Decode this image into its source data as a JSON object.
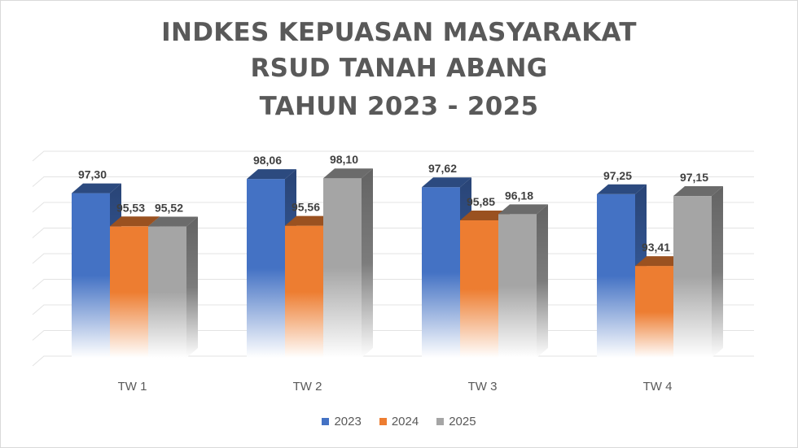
{
  "chart_data": {
    "type": "bar",
    "title": [
      "INDKES KEPUASAN MASYARAKAT",
      "RSUD TANAH ABANG",
      "TAHUN 2023 - 2025"
    ],
    "categories": [
      "TW 1",
      "TW 2",
      "TW 3",
      "TW 4"
    ],
    "series": [
      {
        "name": "2023",
        "color": "#4472c4",
        "values": [
          97.3,
          98.06,
          97.62,
          97.25
        ],
        "labels": [
          "97,30",
          "98,06",
          "97,62",
          "97,25"
        ]
      },
      {
        "name": "2024",
        "color": "#ed7d31",
        "values": [
          95.53,
          95.56,
          95.85,
          93.41
        ],
        "labels": [
          "95,53",
          "95,56",
          "95,85",
          "93,41"
        ]
      },
      {
        "name": "2025",
        "color": "#a5a5a5",
        "values": [
          95.52,
          98.1,
          96.18,
          97.15
        ],
        "labels": [
          "95,52",
          "98,10",
          "96,18",
          "97,15"
        ]
      }
    ],
    "ylim": [
      88.5,
      99.5
    ],
    "yaxis_labels_visible": false,
    "grid": true,
    "legend": "bottom",
    "style": "3d-gradient-columns"
  }
}
